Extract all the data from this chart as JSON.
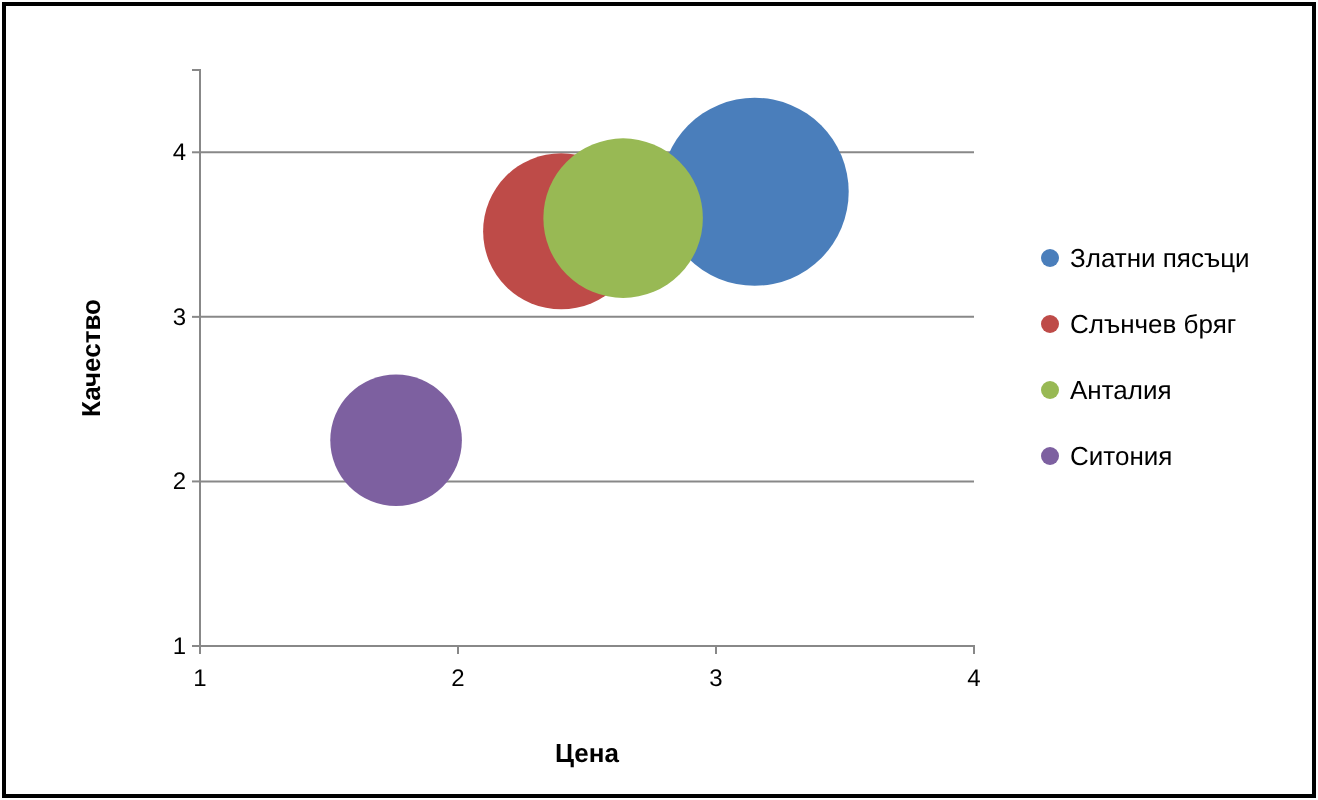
{
  "chart_data": {
    "type": "bubble",
    "xlabel": "Цена",
    "ylabel": "Качество",
    "xlim": [
      1,
      4
    ],
    "xticks": [
      1,
      2,
      3,
      4
    ],
    "ylim": [
      1,
      4.5
    ],
    "yticks": [
      1,
      2,
      3,
      4
    ],
    "grid": "y",
    "legend": "right",
    "series": [
      {
        "name": "Златни пясъци",
        "color": "#4a7ebb",
        "x": [
          3.15
        ],
        "values": [
          3.76
        ],
        "sizes": [
          1
        ]
      },
      {
        "name": "Слънчев бряг",
        "color": "#be4b48",
        "x": [
          2.4
        ],
        "values": [
          3.52
        ],
        "sizes": [
          0.69
        ]
      },
      {
        "name": "Анталия",
        "color": "#98b954",
        "x": [
          2.64
        ],
        "values": [
          3.6
        ],
        "sizes": [
          0.72
        ]
      },
      {
        "name": "Ситония",
        "color": "#7d60a0",
        "x": [
          1.76
        ],
        "values": [
          2.25
        ],
        "sizes": [
          0.49
        ]
      }
    ]
  }
}
